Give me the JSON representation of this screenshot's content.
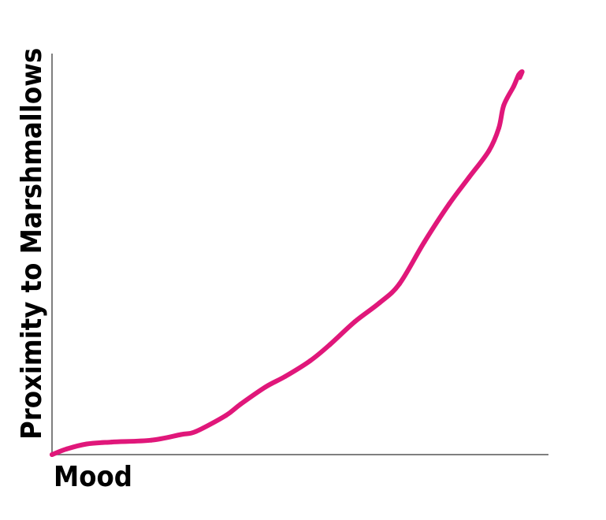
{
  "chart_data": {
    "type": "line",
    "title": "",
    "xlabel": "Mood",
    "ylabel": "Proximity to Marshmallows",
    "xlim": [
      0,
      100
    ],
    "ylim": [
      0,
      100
    ],
    "grid": false,
    "legend": "none",
    "colors": {
      "series": "#e0177a",
      "axis": "#555555",
      "text": "#000000"
    },
    "series": [
      {
        "x": [
          0,
          3,
          7,
          12,
          20,
          26,
          29,
          35,
          38,
          43,
          47,
          52,
          56,
          61,
          66,
          70,
          75,
          80,
          84,
          88,
          90,
          91,
          93,
          94,
          94.7,
          94.2
        ],
        "y": [
          0,
          1.5,
          2.8,
          3.3,
          3.8,
          5.3,
          6.1,
          10.3,
          13.3,
          17.8,
          20.6,
          24.7,
          29,
          35,
          40,
          45,
          56,
          66,
          73,
          80,
          86,
          92,
          97,
          100,
          100.8,
          99.3
        ]
      }
    ]
  }
}
